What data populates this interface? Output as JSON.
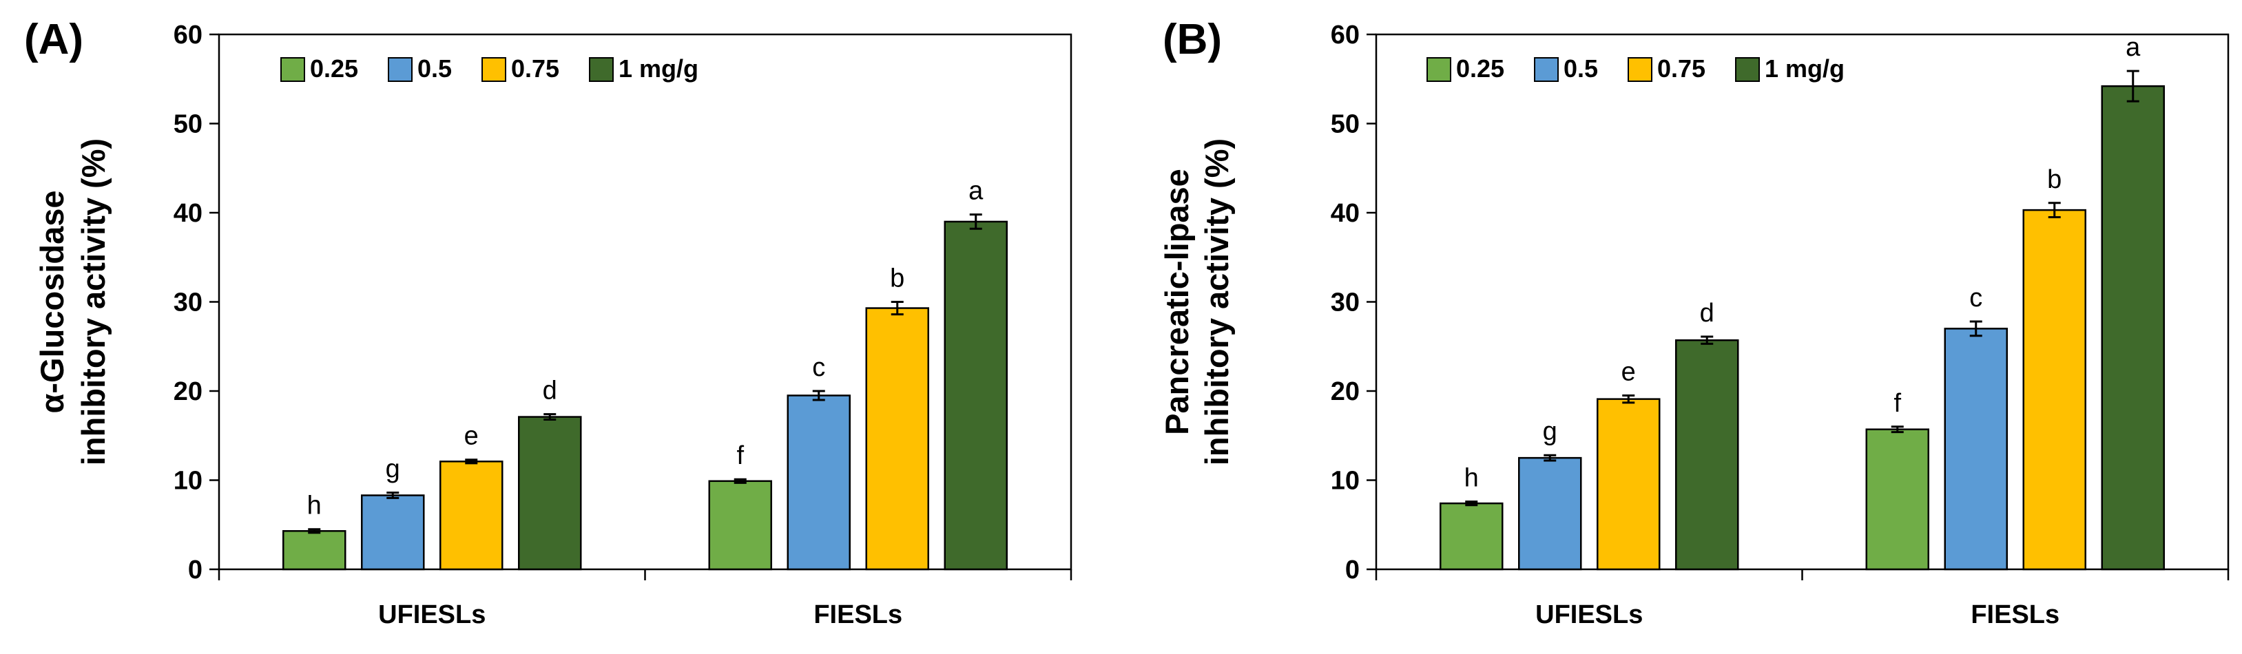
{
  "chart_data": [
    {
      "type": "bar",
      "panel_label": "(A)",
      "ylabel": "α-Glucosidase\ninhibitory activity (%)",
      "ylim": [
        0,
        60
      ],
      "yticks": [
        0,
        10,
        20,
        30,
        40,
        50,
        60
      ],
      "categories": [
        "UFIESLs",
        "FIESLs"
      ],
      "legend_position": "top-left",
      "series": [
        {
          "name": "0.25",
          "color": "#70ad47",
          "values": [
            4.3,
            9.9
          ],
          "errors": [
            0.2,
            0.2
          ],
          "letters": [
            "h",
            "f"
          ]
        },
        {
          "name": "0.5",
          "color": "#5b9bd5",
          "values": [
            8.3,
            19.5
          ],
          "errors": [
            0.3,
            0.5
          ],
          "letters": [
            "g",
            "c"
          ]
        },
        {
          "name": "0.75",
          "color": "#ffc000",
          "values": [
            12.1,
            29.3
          ],
          "errors": [
            0.2,
            0.7
          ],
          "letters": [
            "e",
            "b"
          ]
        },
        {
          "name": "1 mg/g",
          "color": "#3f6a2b",
          "values": [
            17.1,
            39.0
          ],
          "errors": [
            0.3,
            0.8
          ],
          "letters": [
            "d",
            "a"
          ]
        }
      ]
    },
    {
      "type": "bar",
      "panel_label": "(B)",
      "ylabel": "Pancreatic-lipase\ninhibitory activity (%)",
      "ylim": [
        0,
        60
      ],
      "yticks": [
        0,
        10,
        20,
        30,
        40,
        50,
        60
      ],
      "categories": [
        "UFIESLs",
        "FIESLs"
      ],
      "legend_position": "top-left",
      "series": [
        {
          "name": "0.25",
          "color": "#70ad47",
          "values": [
            7.4,
            15.7
          ],
          "errors": [
            0.2,
            0.3
          ],
          "letters": [
            "h",
            "f"
          ]
        },
        {
          "name": "0.5",
          "color": "#5b9bd5",
          "values": [
            12.5,
            27.0
          ],
          "errors": [
            0.3,
            0.8
          ],
          "letters": [
            "g",
            "c"
          ]
        },
        {
          "name": "0.75",
          "color": "#ffc000",
          "values": [
            19.1,
            40.3
          ],
          "errors": [
            0.4,
            0.8
          ],
          "letters": [
            "e",
            "b"
          ]
        },
        {
          "name": "1 mg/g",
          "color": "#3f6a2b",
          "values": [
            25.7,
            54.2
          ],
          "errors": [
            0.4,
            1.7
          ],
          "letters": [
            "d",
            "a"
          ]
        }
      ]
    }
  ]
}
